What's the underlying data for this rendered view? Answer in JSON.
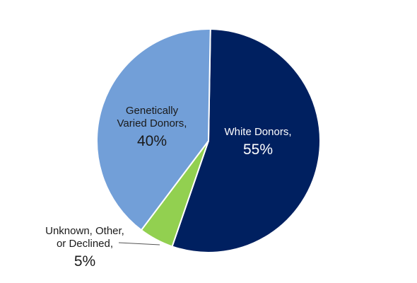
{
  "chart_data": {
    "type": "pie",
    "title": "",
    "slices": [
      {
        "name_line1": "White Donors,",
        "name_line2": "",
        "percent_label": "55%",
        "value": 55,
        "color": "#002060"
      },
      {
        "name_line1": "Unknown, Other,",
        "name_line2": "or Declined,",
        "percent_label": "5%",
        "value": 5,
        "color": "#92d050"
      },
      {
        "name_line1": "Genetically",
        "name_line2": "Varied Donors,",
        "percent_label": "40%",
        "value": 40,
        "color": "#729fd8"
      }
    ],
    "start_angle_deg": 1,
    "direction": "clockwise"
  }
}
